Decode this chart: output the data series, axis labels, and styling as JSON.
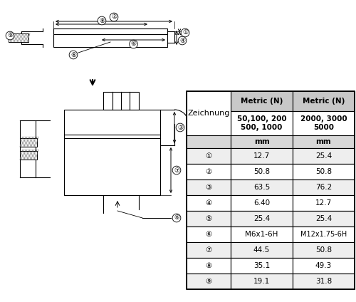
{
  "table_headers": [
    "Zeichnung",
    "Metric (N)",
    "Metric (N)"
  ],
  "table_subheaders": [
    "",
    "50,100, 200\n500, 1000",
    "2000, 3000\n5000"
  ],
  "table_units": [
    "",
    "mm",
    "mm"
  ],
  "table_rows": [
    [
      "①",
      "12.7",
      "25.4"
    ],
    [
      "②",
      "50.8",
      "50.8"
    ],
    [
      "③",
      "63.5",
      "76.2"
    ],
    [
      "④",
      "6.40",
      "12.7"
    ],
    [
      "⑤",
      "25.4",
      "25.4"
    ],
    [
      "⑥",
      "M6x1-6H",
      "M12x1.75-6H"
    ],
    [
      "⑦",
      "44.5",
      "50.8"
    ],
    [
      "⑧",
      "35.1",
      "49.3"
    ],
    [
      "⑨",
      "19.1",
      "31.8"
    ]
  ],
  "bg_color": "#ffffff",
  "line_color": "#000000",
  "table_header_bg": "#d0d0d0",
  "table_alt_bg": "#e8e8e8"
}
